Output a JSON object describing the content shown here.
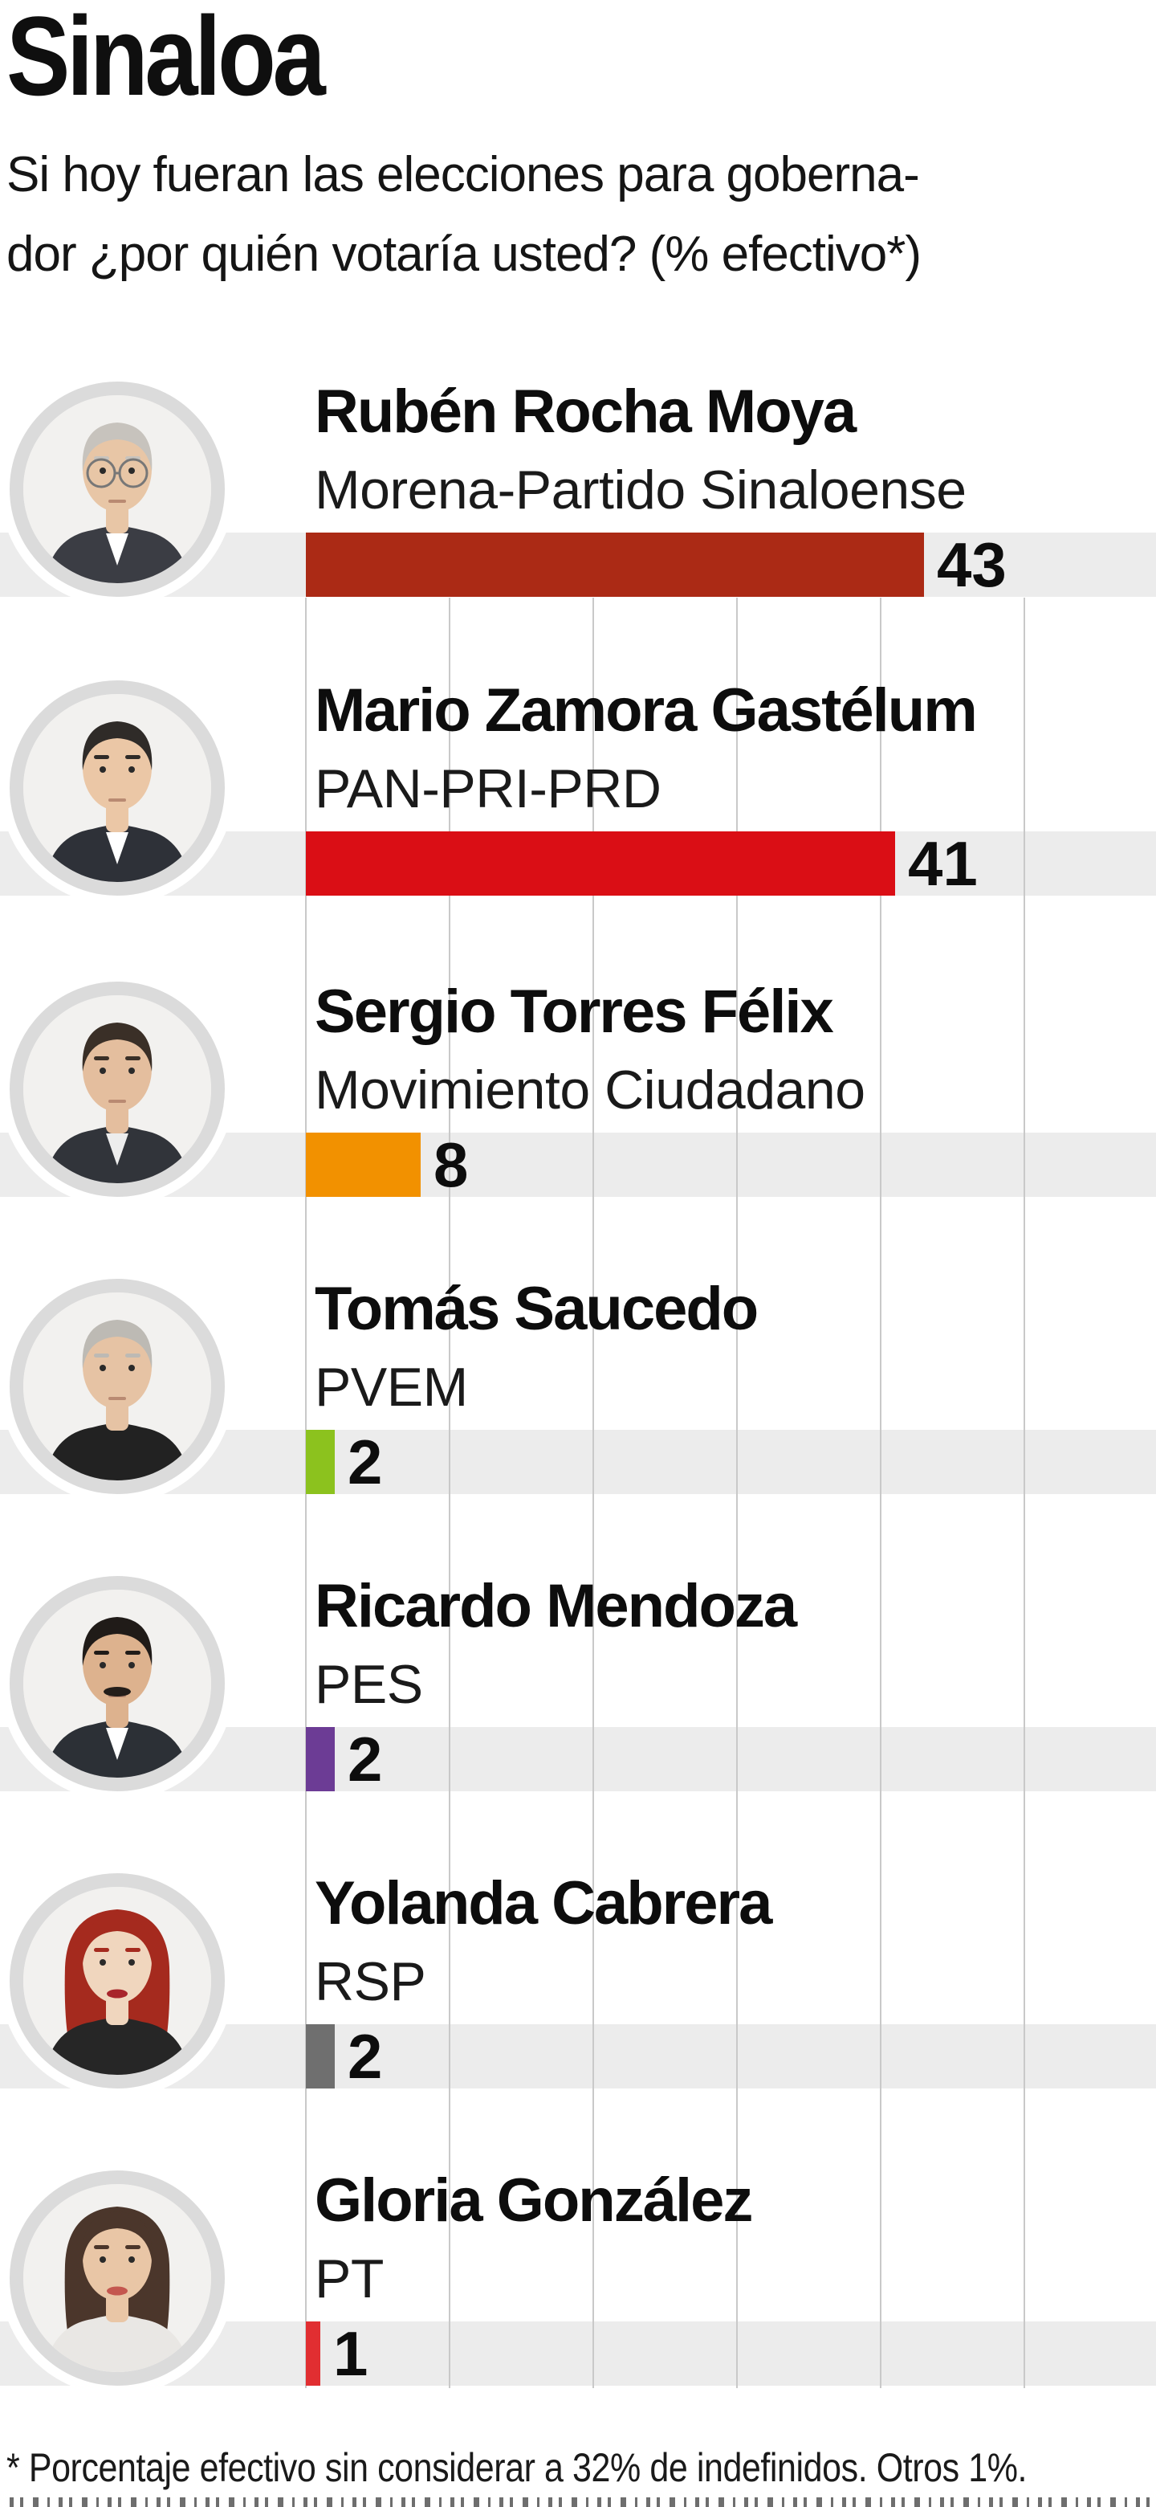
{
  "title": "Sinaloa",
  "question": {
    "line1": "Si hoy fueran las elecciones para goberna-",
    "line2": "dor ¿por quién votaría usted? (% efectivo*)"
  },
  "footnote": "* Porcentaje efectivo sin considerar a 32% de indefinidos. Otros 1%.",
  "candidates": [
    {
      "name": "Rubén Rocha Moya",
      "party": "Morena-Partido Sinaloense",
      "value": 43,
      "color": "#AB2A15",
      "photo": {
        "skin": "#E8C6A6",
        "hair": "#C7C3BD",
        "style": "short",
        "clothes": "#3B3D44",
        "shirt": "#FFFFFF",
        "glasses": true
      }
    },
    {
      "name": "Mario Zamora Gastélum",
      "party": "PAN-PRI-PRD",
      "value": 41,
      "color": "#DA0E15",
      "photo": {
        "skin": "#EBC7A6",
        "hair": "#2F2B28",
        "style": "short",
        "clothes": "#2E3138",
        "shirt": "#FFFFFF"
      }
    },
    {
      "name": "Sergio Torres Félix",
      "party": "Movimiento Ciudadano",
      "value": 8,
      "color": "#F29100",
      "photo": {
        "skin": "#E4BE9E",
        "hair": "#3A2F27",
        "style": "short",
        "clothes": "#31343A",
        "shirt": "#EDEDED"
      }
    },
    {
      "name": "Tomás Saucedo",
      "party": "PVEM",
      "value": 2,
      "color": "#8CC21E",
      "photo": {
        "skin": "#E6C3A4",
        "hair": "#BDBAB4",
        "style": "short",
        "clothes": "#222222"
      }
    },
    {
      "name": "Ricardo Mendoza",
      "party": "PES",
      "value": 2,
      "color": "#6C3C95",
      "photo": {
        "skin": "#DDB28E",
        "hair": "#201B18",
        "style": "short",
        "clothes": "#2C3036",
        "shirt": "#FFFFFF",
        "mustache": true
      }
    },
    {
      "name": "Yolanda Cabrera",
      "party": "RSP",
      "value": 2,
      "color": "#6F6F6F",
      "photo": {
        "skin": "#F0D6BE",
        "hair": "#A52A1E",
        "style": "long",
        "clothes": "#262626",
        "lips": "#A8252C"
      }
    },
    {
      "name": "Gloria González",
      "party": "PT",
      "value": 1,
      "color": "#E12E31",
      "photo": {
        "skin": "#E9C6A6",
        "hair": "#4B362B",
        "style": "long",
        "clothes": "#E9E7E4",
        "lips": "#C4574F"
      }
    }
  ],
  "chart_data": {
    "type": "bar",
    "orientation": "horizontal",
    "title": "Sinaloa",
    "subtitle": "Si hoy fueran las elecciones para gobernador ¿por quién votaría usted? (% efectivo*)",
    "categories": [
      "Rubén Rocha Moya",
      "Mario Zamora Gastélum",
      "Sergio Torres Félix",
      "Tomás Saucedo",
      "Ricardo Mendoza",
      "Yolanda Cabrera",
      "Gloria González"
    ],
    "category_subtitles": [
      "Morena-Partido Sinaloense",
      "PAN-PRI-PRD",
      "Movimiento Ciudadano",
      "PVEM",
      "PES",
      "RSP",
      "PT"
    ],
    "values": [
      43,
      41,
      8,
      2,
      2,
      2,
      1
    ],
    "bar_colors": [
      "#AB2A15",
      "#DA0E15",
      "#F29100",
      "#8CC21E",
      "#6C3C95",
      "#6F6F6F",
      "#E12E31"
    ],
    "unit": "% efectivo",
    "xlim": [
      0,
      59
    ],
    "gridline_interval": 10,
    "grid": true,
    "value_labels": true,
    "legend_position": "none",
    "footnote": "* Porcentaje efectivo sin considerar a 32% de indefinidos. Otros 1%."
  },
  "colors": {
    "track": "#ECECEC",
    "gridline": "#C9C9C9",
    "photo_ring": "#DBDBDB",
    "text": "#0D0D0D"
  }
}
